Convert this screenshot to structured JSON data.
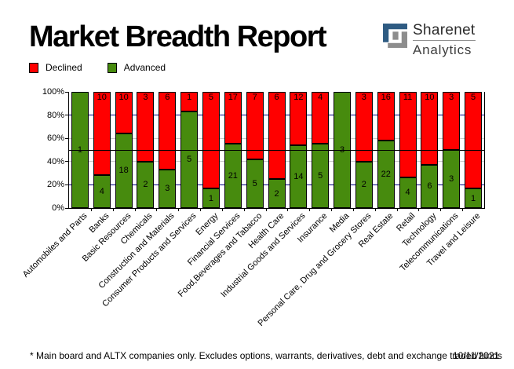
{
  "header": {
    "title": "Market Breadth Report",
    "logo": {
      "line1": "Sharenet",
      "line2": "Analytics"
    }
  },
  "legend": {
    "items": [
      {
        "label": "Declined",
        "color": "#ff0000"
      },
      {
        "label": "Advanced",
        "color": "#478b0e"
      }
    ]
  },
  "chart_data": {
    "type": "bar",
    "stacked": true,
    "units": "percent_of_total",
    "title": "Market Breadth Report",
    "legend_position": "top-left",
    "categories": [
      "Automobiles and Parts",
      "Banks",
      "Basic Resources",
      "Chemicals",
      "Construction and Materials",
      "Consumer Products and Services",
      "Energy",
      "Financial Services",
      "Food,Beverages and Tabacco",
      "Health Care",
      "Industrial Goods and Services",
      "Insurance",
      "Media",
      "Personal Care, Drug and Grocery Stores",
      "Real Estate",
      "Retail",
      "Technology",
      "Telecommunications",
      "Travel and Leisure"
    ],
    "series": [
      {
        "name": "Advanced",
        "color": "#478b0e",
        "values": [
          1,
          4,
          18,
          2,
          3,
          5,
          1,
          21,
          5,
          2,
          14,
          5,
          3,
          2,
          22,
          4,
          6,
          3,
          1
        ]
      },
      {
        "name": "Declined",
        "color": "#ff0000",
        "values": [
          0,
          10,
          10,
          3,
          6,
          1,
          5,
          17,
          7,
          6,
          12,
          4,
          0,
          3,
          16,
          11,
          10,
          3,
          5
        ]
      }
    ],
    "y_axis": {
      "range": [
        0,
        100
      ],
      "ticks": [
        {
          "label": "0%",
          "value": 0
        },
        {
          "label": "20%",
          "value": 20
        },
        {
          "label": "40%",
          "value": 40
        },
        {
          "label": "60%",
          "value": 60
        },
        {
          "label": "80%",
          "value": 80
        },
        {
          "label": "100%",
          "value": 100
        }
      ]
    },
    "gridlines": [
      {
        "value": 20,
        "color": "#000080",
        "over_bars": false
      },
      {
        "value": 40,
        "color": "#c8c8c8",
        "over_bars": false
      },
      {
        "value": 50,
        "color": "#000000",
        "over_bars": true
      },
      {
        "value": 60,
        "color": "#c8c8c8",
        "over_bars": false
      },
      {
        "value": 80,
        "color": "#000080",
        "over_bars": false
      }
    ],
    "bar_value_labels": {
      "declined_position": "inside-top",
      "advanced_position": "inside-center",
      "hide_zero": true
    }
  },
  "footer": {
    "note": "* Main board and ALTX companies only. Excludes options, warrants, derivatives, debt and exchange traded funds",
    "date": "10/11/2021"
  }
}
